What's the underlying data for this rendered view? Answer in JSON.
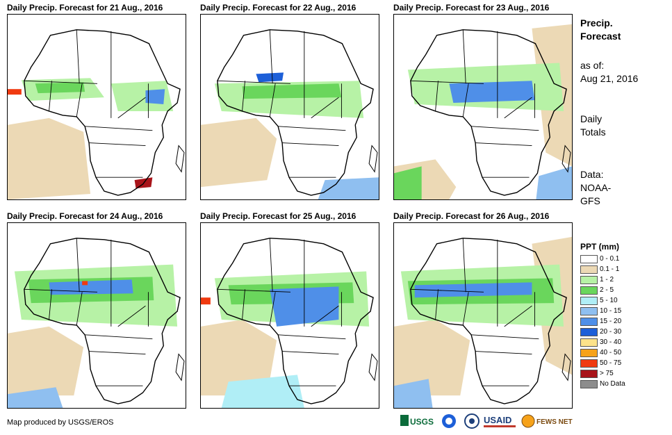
{
  "panels": [
    {
      "title": "Daily Precip. Forecast for 21 Aug., 2016"
    },
    {
      "title": "Daily Precip. Forecast for 22 Aug., 2016"
    },
    {
      "title": "Daily Precip. Forecast for 23 Aug., 2016"
    },
    {
      "title": "Daily Precip. Forecast for 24 Aug., 2016"
    },
    {
      "title": "Daily Precip. Forecast for 25 Aug., 2016"
    },
    {
      "title": "Daily Precip. Forecast for 26 Aug., 2016"
    }
  ],
  "sidebar": {
    "heading_line1": "Precip.",
    "heading_line2": "Forecast",
    "asof_label": "as of:",
    "asof_date": "Aug 21, 2016",
    "totals_line1": "Daily",
    "totals_line2": "Totals",
    "data_line1": "Data:",
    "data_line2": "NOAA-",
    "data_line3": "GFS"
  },
  "legend": {
    "title": "PPT (mm)",
    "items": [
      {
        "label": "0 - 0.1",
        "color": "#ffffff"
      },
      {
        "label": "0.1 - 1",
        "color": "#ecd9b5"
      },
      {
        "label": "1 - 2",
        "color": "#b7f2a6"
      },
      {
        "label": "2 - 5",
        "color": "#6ad65c"
      },
      {
        "label": "5 - 10",
        "color": "#b0eef6"
      },
      {
        "label": "10 - 15",
        "color": "#8fbff0"
      },
      {
        "label": "15 - 20",
        "color": "#4f8fe8"
      },
      {
        "label": "20 - 30",
        "color": "#1d5fd8"
      },
      {
        "label": "30 - 40",
        "color": "#fde38a"
      },
      {
        "label": "40 - 50",
        "color": "#f6a21a"
      },
      {
        "label": "50 - 75",
        "color": "#f03a10"
      },
      {
        "label": "> 75",
        "color": "#a8141a"
      },
      {
        "label": "No Data",
        "color": "#8c8c8c"
      }
    ]
  },
  "footer": {
    "credit": "Map produced by USGS/EROS"
  },
  "logos": {
    "usgs": "USGS",
    "noaa": "NOAA",
    "usaid": "USAID",
    "fewsnet": "FEWS NET"
  }
}
